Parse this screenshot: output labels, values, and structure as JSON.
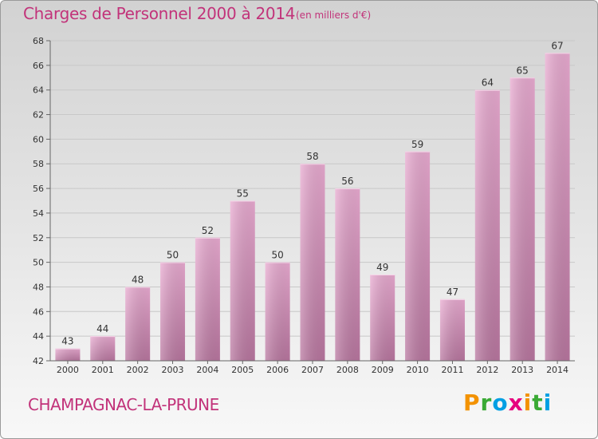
{
  "title": "Charges de Personnel 2000 à 2014",
  "unit_note": "(en milliers d'€)",
  "commune": "CHAMPAGNAC-LA-PRUNE",
  "logo": {
    "text": "Proxiti",
    "colors": [
      "#f39200",
      "#3aaa35",
      "#009fe3",
      "#e6007e",
      "#f39200",
      "#3aaa35",
      "#009fe3"
    ]
  },
  "colors": {
    "bar_top": "#e8aad0",
    "bar_bottom": "#b8769f",
    "accent": "#c2337a"
  },
  "chart_data": {
    "type": "bar",
    "categories": [
      "2000",
      "2001",
      "2002",
      "2003",
      "2004",
      "2005",
      "2006",
      "2007",
      "2008",
      "2009",
      "2010",
      "2011",
      "2012",
      "2013",
      "2014"
    ],
    "values": [
      43,
      44,
      48,
      50,
      52,
      55,
      50,
      58,
      56,
      49,
      59,
      47,
      64,
      65,
      67
    ],
    "title": "Charges de Personnel 2000 à 2014",
    "ylim": [
      42,
      68
    ],
    "yticks": [
      42,
      44,
      46,
      48,
      50,
      52,
      54,
      56,
      58,
      60,
      62,
      64,
      66,
      68
    ],
    "grid": true,
    "legend": "none"
  }
}
